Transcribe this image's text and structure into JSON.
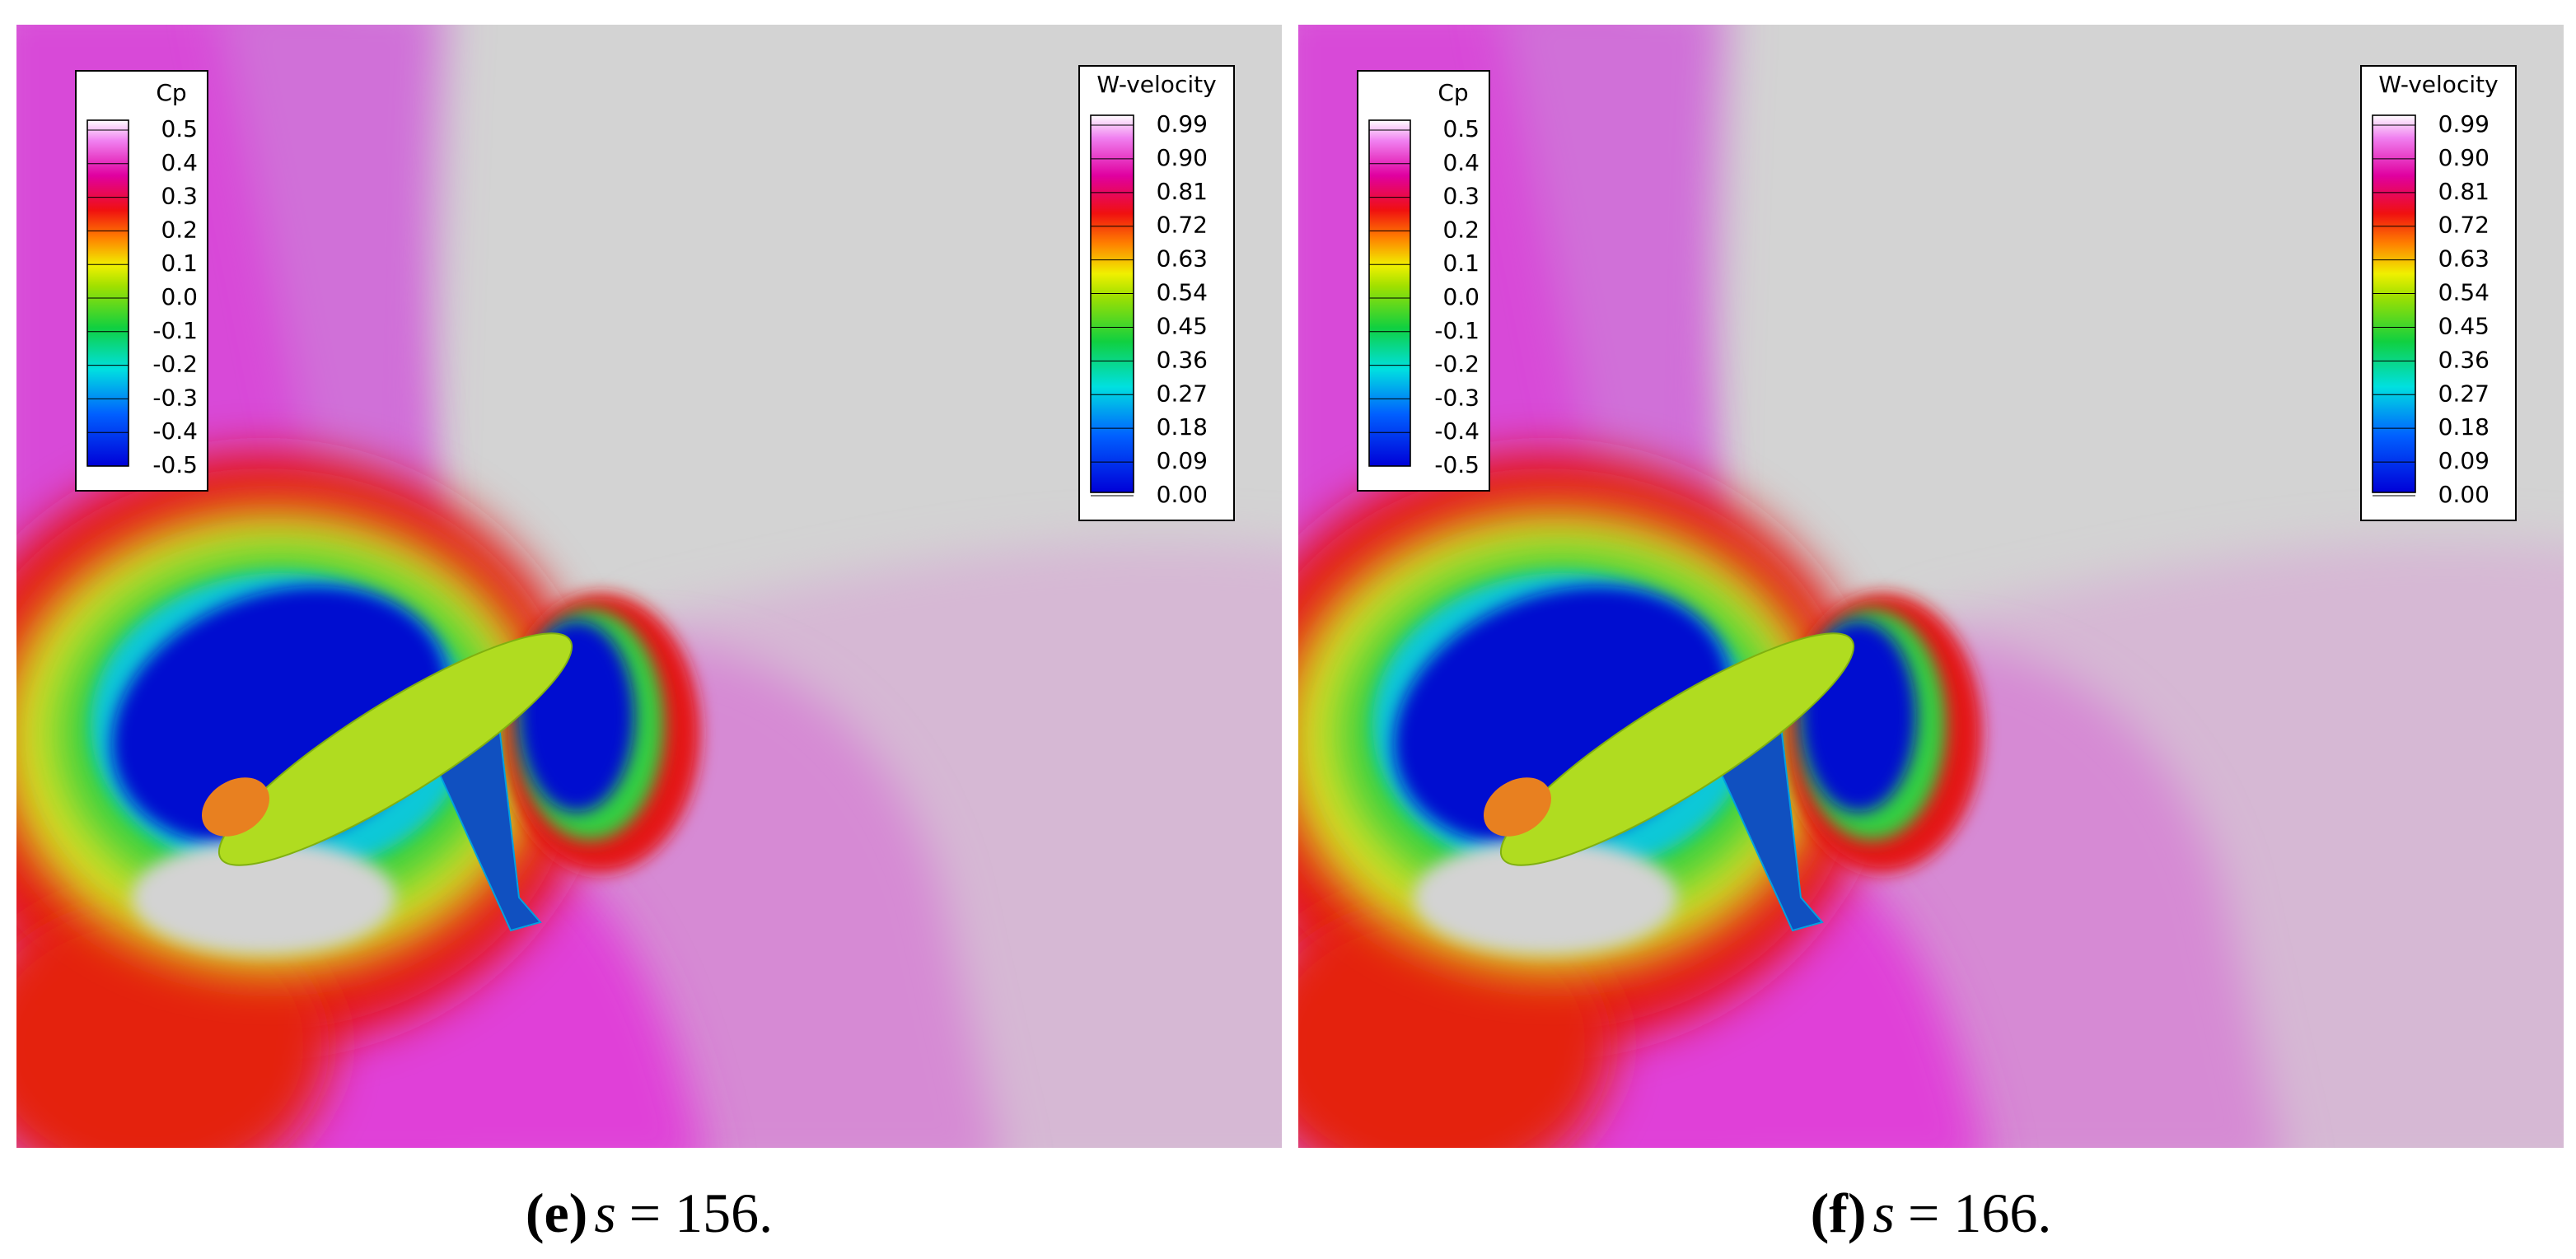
{
  "panels": [
    {
      "caption": {
        "label": "(e)",
        "variable": "s",
        "relation": "= 156."
      },
      "cp_legend": {
        "title": "Cp",
        "labels": [
          "0.5",
          "0.4",
          "0.3",
          "0.2",
          "0.1",
          "0.0",
          "-0.1",
          "-0.2",
          "-0.3",
          "-0.4",
          "-0.5"
        ]
      },
      "w_legend": {
        "title": "W-velocity",
        "labels": [
          "0.99",
          "0.90",
          "0.81",
          "0.72",
          "0.63",
          "0.54",
          "0.45",
          "0.36",
          "0.27",
          "0.18",
          "0.09",
          "0.00"
        ]
      }
    },
    {
      "caption": {
        "label": "(f)",
        "variable": "s",
        "relation": "= 166."
      },
      "cp_legend": {
        "title": "Cp",
        "labels": [
          "0.5",
          "0.4",
          "0.3",
          "0.2",
          "0.1",
          "0.0",
          "-0.1",
          "-0.2",
          "-0.3",
          "-0.4",
          "-0.5"
        ]
      },
      "w_legend": {
        "title": "W-velocity",
        "labels": [
          "0.99",
          "0.90",
          "0.81",
          "0.72",
          "0.63",
          "0.54",
          "0.45",
          "0.36",
          "0.27",
          "0.18",
          "0.09",
          "0.00"
        ]
      }
    }
  ]
}
